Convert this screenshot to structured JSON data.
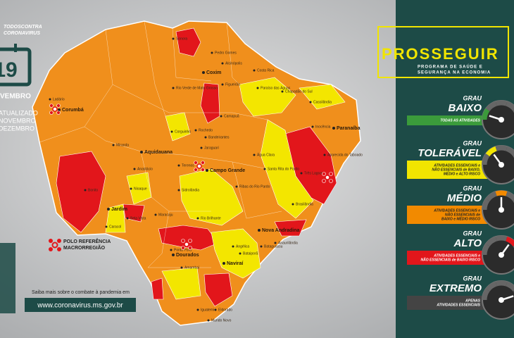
{
  "header": {
    "hashtag_line1": "TODOSCONTRA",
    "hashtag_line2": "CORONAVIRUS",
    "calendar_day": "19",
    "calendar_month": "VEMBRO",
    "updated_line1": "ATUALIZADO",
    "updated_line2": "NOVEMBRO",
    "updated_line3": "DEZEMBRO"
  },
  "program": {
    "title": "PROSSEGUIR",
    "subtitle_line1": "PROGRAMA DE SAÚDE E",
    "subtitle_line2": "SEGURANÇA NA ECONOMIA"
  },
  "levels": [
    {
      "prefix": "GRAU",
      "name": "BAIXO",
      "description": [
        "TODAS AS ATIVIDADES"
      ],
      "color": "#3b9b3b"
    },
    {
      "prefix": "GRAU",
      "name": "TOLERÁVEL",
      "description": [
        "ATIVIDADES ESSENCIAIS e",
        "NÃO ESSENCIAIS de BAIXO,",
        "MÉDIO e ALTO RISCO"
      ],
      "color": "#f1e500"
    },
    {
      "prefix": "GRAU",
      "name": "MÉDIO",
      "description": [
        "ATIVIDADES ESSENCIAIS e",
        "NÃO ESSENCIAIS de",
        "BAIXO e MÉDIO RISCO"
      ],
      "color": "#f28a00"
    },
    {
      "prefix": "GRAU",
      "name": "ALTO",
      "description": [
        "ATIVIDADES ESSENCIAIS e",
        "NÃO ESSENCIAIS de BAIXO RISCO"
      ],
      "color": "#e2161b"
    },
    {
      "prefix": "GRAU",
      "name": "EXTREMO",
      "description": [
        "APENAS",
        "ATIVIDADES ESSENCIAIS"
      ],
      "color": "#444444"
    }
  ],
  "legend": {
    "label_line1": "POLO REFERÊNCIA",
    "label_line2": "MACRORREGIÃO"
  },
  "footer": {
    "text": "Saiba mais sobre o combate à pandemia em",
    "url": "www.coronavirus.ms.gov.br"
  },
  "cities": [
    "Corumbá",
    "Ladário",
    "Coxim",
    "Aquidauana",
    "Campo Grande",
    "Paranaíba",
    "Dourados",
    "Ponta Porã",
    "Nova Andradina",
    "Naviraí",
    "Jardim",
    "Três Lagoas",
    "Miranda",
    "Anastácio",
    "Nioaque",
    "Bonito",
    "Sonora",
    "Pedro Gomes",
    "Alcinópolis",
    "Costa Rica",
    "Figueirão",
    "Cassilândia",
    "Rio Verde de Mato Grosso",
    "Camapuã",
    "Corguinho",
    "Rochedo",
    "Bandeirantes",
    "Jaraguari",
    "Terenos",
    "Ribas do Rio Pardo",
    "Água Clara",
    "Inocência",
    "Aparecida do Taboado",
    "Santa Rita do Pardo",
    "Brasilândia",
    "Maracaju",
    "Rio Brilhante",
    "Angélica",
    "Bataiporã",
    "Bataguassu",
    "Anaurilândia",
    "Amambai",
    "Iguatemi",
    "Eldorado",
    "Mundo Novo",
    "Bela Vista",
    "Caracol",
    "Sidrolândia",
    "Chapadão do Sul",
    "Paraíso das Águas"
  ]
}
